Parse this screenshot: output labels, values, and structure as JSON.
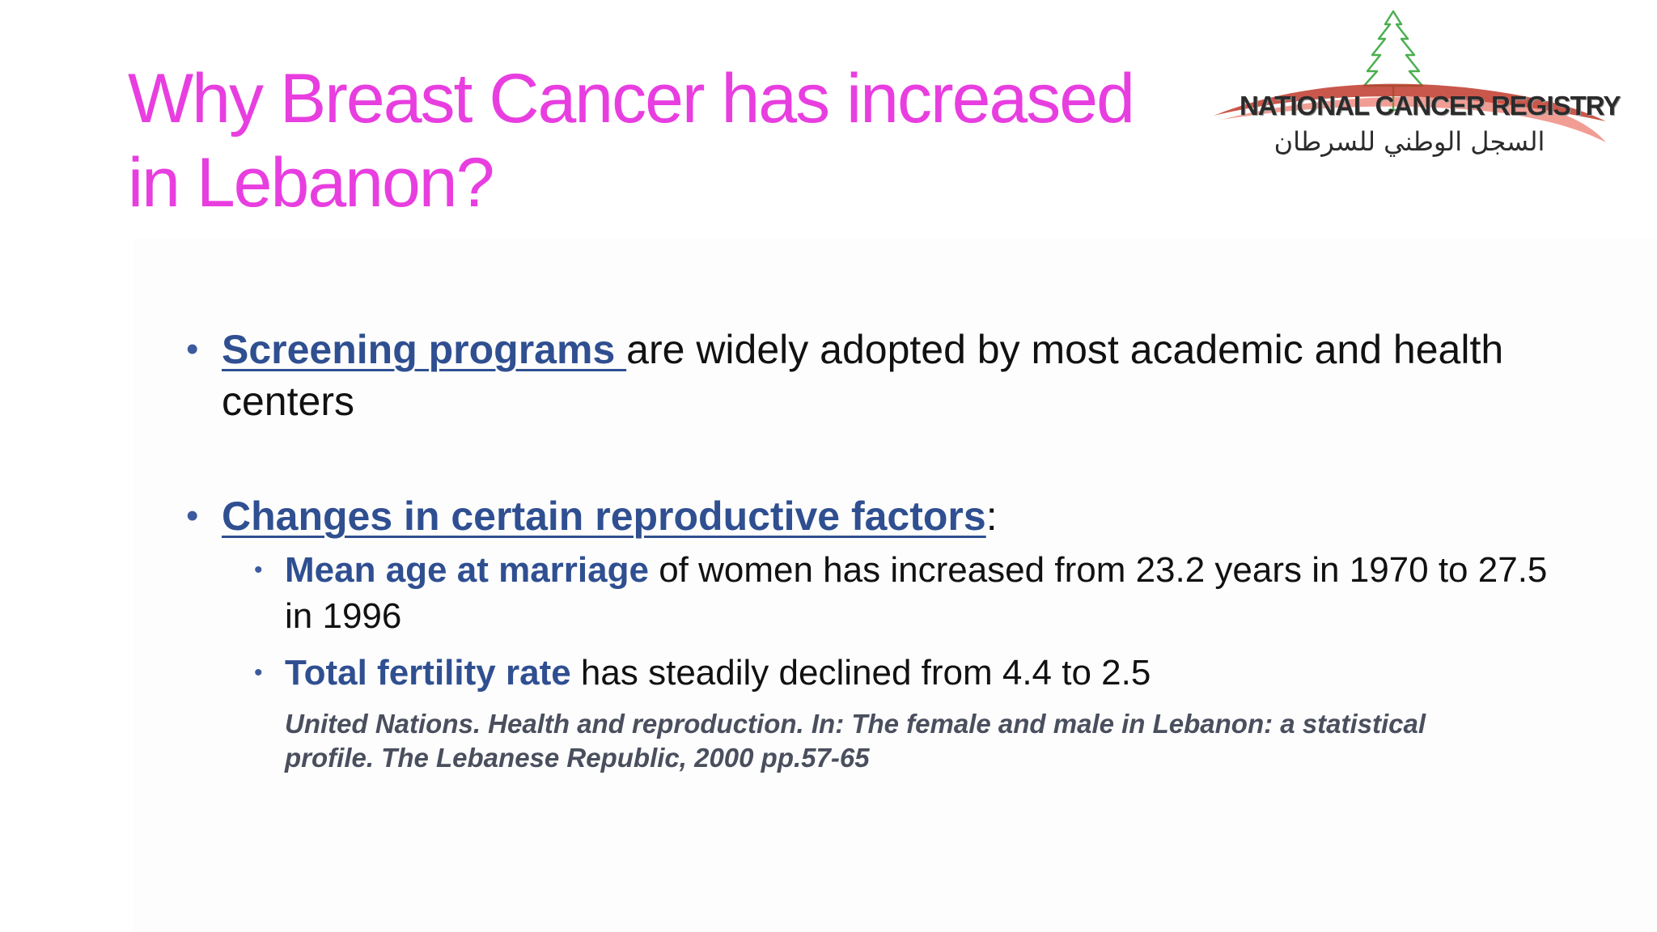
{
  "title": "Why Breast Cancer has increased in Lebanon?",
  "logo": {
    "text_en": "NATIONAL CANCER REGISTRY",
    "text_ar": "السجل الوطني للسرطان",
    "tree_color": "#4caf50",
    "swoosh_color": "#c0392b"
  },
  "bullets": [
    {
      "keyword": "Screening programs ",
      "text": "are widely adopted by most academic and health centers"
    },
    {
      "keyword": "Changes in certain reproductive factors",
      "text": ":",
      "sub_bullets": [
        {
          "keyword": "Mean age at marriage",
          "text": " of women has increased from 23.2 years in 1970 to 27.5 in 1996"
        },
        {
          "keyword": "Total fertility rate",
          "text": " has steadily declined from 4.4 to 2.5"
        }
      ],
      "citation": "United Nations. Health and reproduction. In: The female and male in Lebanon: a statistical profile. The Lebanese Republic, 2000 pp.57-65"
    }
  ],
  "colors": {
    "title": "#e83ee0",
    "keyword": "#2f4f91",
    "bullet": "#3d5a9e",
    "citation": "#4a4f5e"
  }
}
